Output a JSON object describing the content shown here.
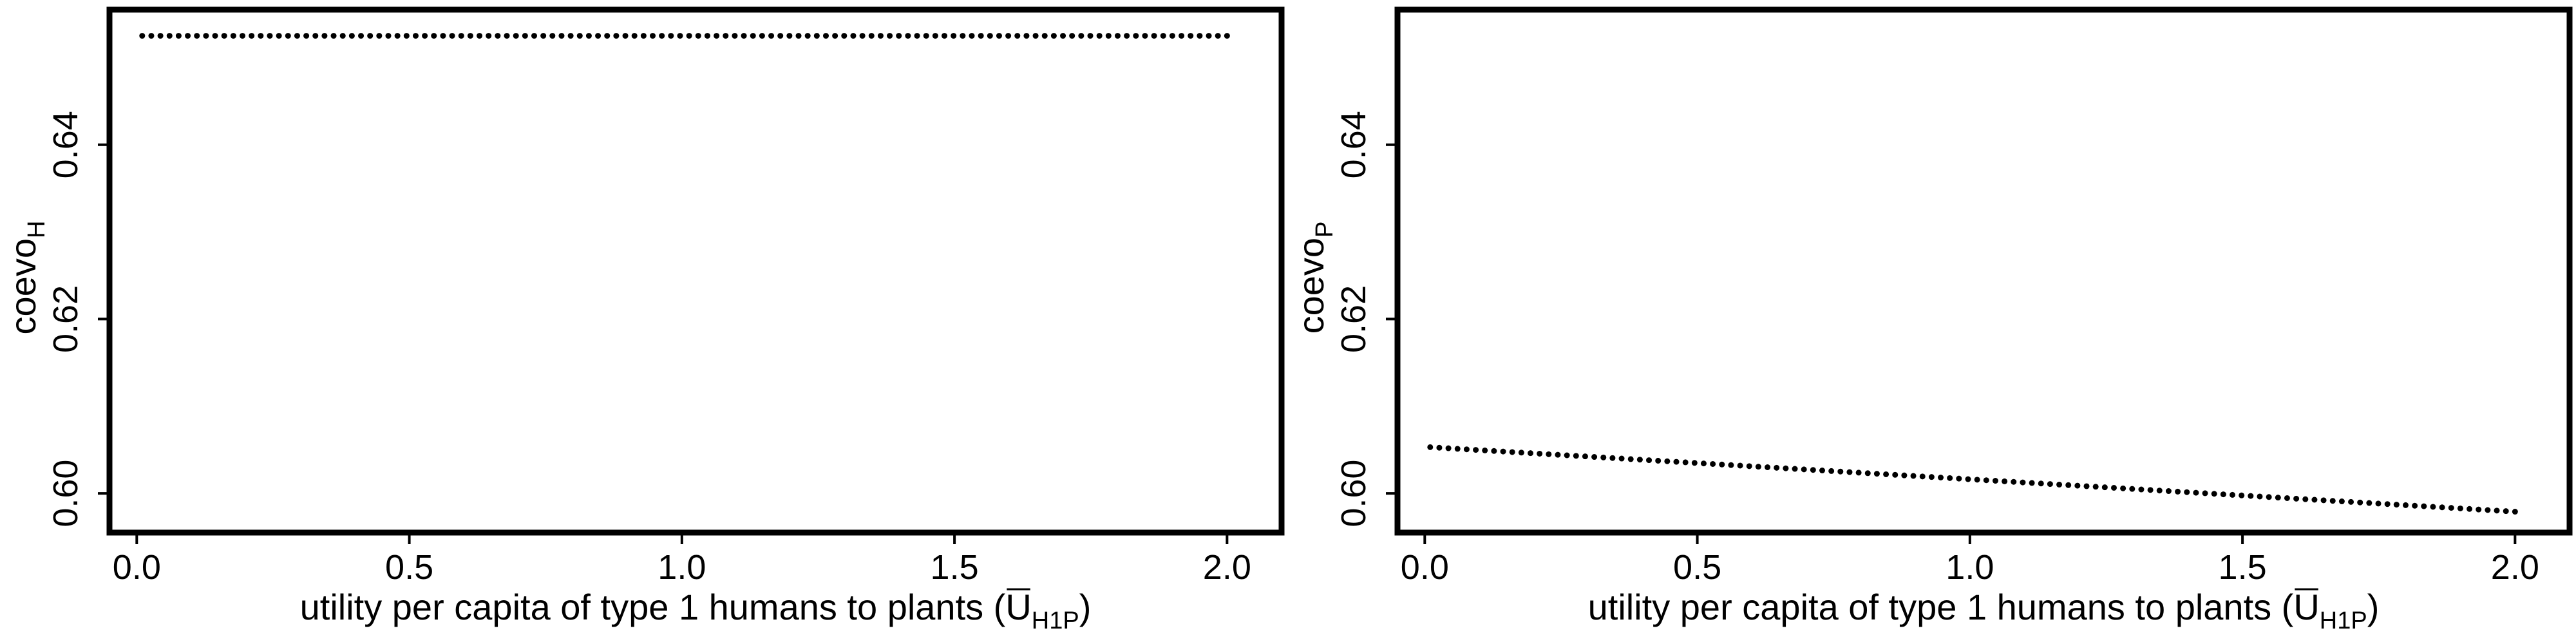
{
  "chart_data": [
    {
      "type": "scatter",
      "title": "",
      "xlabel": "utility per capita of type 1 humans to plants (U",
      "xlabel_sub": "H1P",
      "xlabel_close": ")",
      "ylabel": "coevo",
      "ylabel_sub": "H",
      "xlim": [
        -0.05,
        2.1
      ],
      "ylim": [
        0.5955,
        0.6555
      ],
      "x_ticks": [
        0.0,
        0.5,
        1.0,
        1.5,
        2.0
      ],
      "x_tick_labels": [
        "0.0",
        "0.5",
        "1.0",
        "1.5",
        "2.0"
      ],
      "y_ticks": [
        0.6,
        0.62,
        0.64
      ],
      "y_tick_labels": [
        "0.60",
        "0.62",
        "0.64"
      ],
      "grid": false,
      "series": [
        {
          "x_start": 0.01,
          "x_end": 2.0,
          "y_start": 0.6525,
          "y_end": 0.6525,
          "n_points": 120
        }
      ]
    },
    {
      "type": "scatter",
      "title": "",
      "xlabel": "utility per capita of type 1 humans to plants (U",
      "xlabel_sub": "H1P",
      "xlabel_close": ")",
      "ylabel": "coevo",
      "ylabel_sub": "P",
      "xlim": [
        -0.05,
        2.1
      ],
      "ylim": [
        0.5955,
        0.6555
      ],
      "x_ticks": [
        0.0,
        0.5,
        1.0,
        1.5,
        2.0
      ],
      "x_tick_labels": [
        "0.0",
        "0.5",
        "1.0",
        "1.5",
        "2.0"
      ],
      "y_ticks": [
        0.6,
        0.62,
        0.64
      ],
      "y_tick_labels": [
        "0.60",
        "0.62",
        "0.64"
      ],
      "grid": false,
      "series": [
        {
          "x_start": 0.01,
          "x_end": 2.0,
          "y_start": 0.6053,
          "y_end": 0.5979,
          "n_points": 120
        }
      ]
    }
  ]
}
